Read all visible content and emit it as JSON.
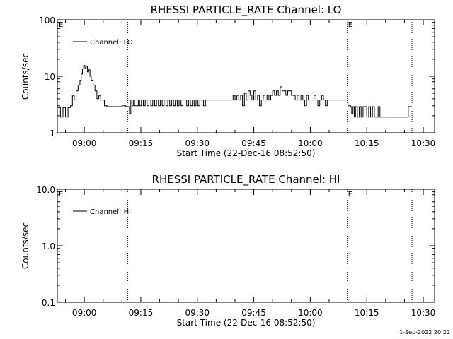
{
  "footer": {
    "timestamp": "1-Sep-2022 20:22"
  },
  "chart_data": [
    {
      "type": "line",
      "title": "RHESSI PARTICLE_RATE Channel: LO",
      "xlabel": "Start Time (22-Dec-16 08:52:50)",
      "ylabel": "Counts/sec",
      "y_scale": "log",
      "ylim": [
        1,
        100
      ],
      "y_ticks": [
        "1",
        "10",
        "100"
      ],
      "x_range": [
        "08:52:50",
        "10:33:00"
      ],
      "x_ticks": [
        "09:00",
        "09:15",
        "09:30",
        "09:45",
        "10:00",
        "10:15",
        "10:30"
      ],
      "grid": false,
      "legend": {
        "position": "top-left",
        "entries": [
          "Channel: LO"
        ]
      },
      "vertical_markers": [
        {
          "time": "09:11:30",
          "label": ""
        },
        {
          "time": "10:09:50",
          "label": "E"
        },
        {
          "time": "10:27:00",
          "label": ""
        }
      ],
      "corner_label": "E",
      "series": [
        {
          "name": "Channel: LO",
          "color": "#000000",
          "points": [
            [
              "08:53:00",
              2.8
            ],
            [
              "08:53:40",
              1.9
            ],
            [
              "08:54:20",
              2.8
            ],
            [
              "08:55:00",
              1.9
            ],
            [
              "08:55:40",
              2.8
            ],
            [
              "08:56:20",
              3.0
            ],
            [
              "08:56:50",
              4.5
            ],
            [
              "08:57:20",
              3.8
            ],
            [
              "08:57:50",
              5.5
            ],
            [
              "08:58:20",
              7.0
            ],
            [
              "08:58:50",
              8.5
            ],
            [
              "08:59:10",
              11.0
            ],
            [
              "08:59:30",
              13.5
            ],
            [
              "08:59:50",
              15.5
            ],
            [
              "09:00:10",
              14.0
            ],
            [
              "09:00:30",
              15.0
            ],
            [
              "09:00:50",
              12.0
            ],
            [
              "09:01:10",
              13.0
            ],
            [
              "09:01:30",
              10.0
            ],
            [
              "09:01:50",
              8.5
            ],
            [
              "09:02:20",
              7.0
            ],
            [
              "09:02:50",
              5.5
            ],
            [
              "09:03:20",
              4.0
            ],
            [
              "09:03:50",
              4.5
            ],
            [
              "09:04:20",
              3.8
            ],
            [
              "09:04:50",
              3.8
            ],
            [
              "09:05:20",
              3.0
            ],
            [
              "09:06:00",
              2.9
            ],
            [
              "09:07:00",
              2.9
            ],
            [
              "09:08:00",
              2.9
            ],
            [
              "09:09:00",
              2.9
            ],
            [
              "09:10:00",
              3.0
            ],
            [
              "09:11:00",
              2.9
            ],
            [
              "09:11:40",
              2.9
            ],
            [
              "09:12:00",
              2.2
            ],
            [
              "09:12:20",
              3.8
            ],
            [
              "09:12:40",
              3.0
            ],
            [
              "09:13:00",
              3.8
            ],
            [
              "09:13:20",
              3.0
            ],
            [
              "09:14:00",
              3.0
            ],
            [
              "09:14:20",
              3.8
            ],
            [
              "09:14:40",
              3.0
            ],
            [
              "09:15:10",
              3.8
            ],
            [
              "09:15:40",
              3.0
            ],
            [
              "09:16:10",
              3.8
            ],
            [
              "09:16:40",
              3.0
            ],
            [
              "09:17:10",
              3.8
            ],
            [
              "09:17:40",
              3.0
            ],
            [
              "09:18:10",
              3.8
            ],
            [
              "09:18:40",
              3.0
            ],
            [
              "09:19:10",
              3.8
            ],
            [
              "09:19:40",
              3.0
            ],
            [
              "09:20:10",
              3.8
            ],
            [
              "09:20:40",
              3.0
            ],
            [
              "09:21:10",
              3.8
            ],
            [
              "09:21:40",
              3.0
            ],
            [
              "09:22:10",
              3.8
            ],
            [
              "09:22:40",
              3.0
            ],
            [
              "09:23:10",
              3.8
            ],
            [
              "09:23:40",
              3.0
            ],
            [
              "09:24:10",
              3.8
            ],
            [
              "09:24:40",
              3.0
            ],
            [
              "09:25:10",
              3.8
            ],
            [
              "09:25:40",
              3.0
            ],
            [
              "09:26:10",
              3.8
            ],
            [
              "09:26:40",
              3.8
            ],
            [
              "09:27:10",
              3.0
            ],
            [
              "09:27:40",
              3.8
            ],
            [
              "09:28:10",
              3.0
            ],
            [
              "09:28:40",
              3.8
            ],
            [
              "09:29:10",
              3.0
            ],
            [
              "09:29:40",
              3.8
            ],
            [
              "09:30:10",
              3.0
            ],
            [
              "09:30:40",
              3.8
            ],
            [
              "09:31:10",
              3.8
            ],
            [
              "09:31:40",
              3.0
            ],
            [
              "09:32:10",
              3.8
            ],
            [
              "09:33:00",
              3.8
            ],
            [
              "09:34:00",
              3.8
            ],
            [
              "09:35:00",
              3.8
            ],
            [
              "09:36:00",
              3.8
            ],
            [
              "09:37:00",
              3.8
            ],
            [
              "09:38:00",
              3.8
            ],
            [
              "09:39:00",
              3.8
            ],
            [
              "09:39:30",
              4.6
            ],
            [
              "09:40:00",
              3.8
            ],
            [
              "09:40:30",
              4.6
            ],
            [
              "09:41:00",
              3.8
            ],
            [
              "09:41:30",
              4.6
            ],
            [
              "09:42:00",
              3.0
            ],
            [
              "09:42:30",
              5.0
            ],
            [
              "09:43:00",
              3.8
            ],
            [
              "09:43:30",
              5.5
            ],
            [
              "09:44:00",
              4.6
            ],
            [
              "09:44:30",
              3.8
            ],
            [
              "09:45:00",
              5.5
            ],
            [
              "09:45:30",
              3.8
            ],
            [
              "09:46:00",
              4.6
            ],
            [
              "09:46:30",
              3.0
            ],
            [
              "09:47:00",
              3.8
            ],
            [
              "09:47:30",
              4.6
            ],
            [
              "09:48:00",
              3.8
            ],
            [
              "09:48:30",
              4.6
            ],
            [
              "09:49:00",
              3.8
            ],
            [
              "09:49:30",
              4.6
            ],
            [
              "09:50:00",
              5.5
            ],
            [
              "09:50:30",
              4.6
            ],
            [
              "09:51:00",
              5.5
            ],
            [
              "09:51:30",
              4.6
            ],
            [
              "09:52:00",
              6.5
            ],
            [
              "09:52:30",
              5.5
            ],
            [
              "09:53:00",
              5.5
            ],
            [
              "09:53:30",
              4.6
            ],
            [
              "09:54:00",
              5.5
            ],
            [
              "09:54:30",
              5.5
            ],
            [
              "09:55:00",
              4.6
            ],
            [
              "09:55:30",
              4.6
            ],
            [
              "09:56:00",
              3.8
            ],
            [
              "09:56:30",
              4.6
            ],
            [
              "09:57:00",
              3.8
            ],
            [
              "09:57:30",
              4.6
            ],
            [
              "09:58:00",
              3.8
            ],
            [
              "09:58:30",
              3.0
            ],
            [
              "09:59:00",
              4.6
            ],
            [
              "09:59:30",
              3.8
            ],
            [
              "10:00:00",
              3.8
            ],
            [
              "10:00:30",
              3.8
            ],
            [
              "10:01:00",
              4.6
            ],
            [
              "10:01:30",
              3.8
            ],
            [
              "10:02:00",
              3.0
            ],
            [
              "10:02:30",
              3.8
            ],
            [
              "10:03:00",
              4.6
            ],
            [
              "10:03:30",
              3.8
            ],
            [
              "10:04:00",
              3.0
            ],
            [
              "10:04:30",
              3.8
            ],
            [
              "10:05:00",
              3.8
            ],
            [
              "10:06:00",
              3.8
            ],
            [
              "10:07:00",
              3.8
            ],
            [
              "10:08:00",
              3.8
            ],
            [
              "10:09:00",
              3.8
            ],
            [
              "10:09:50",
              3.8
            ],
            [
              "10:10:00",
              3.0
            ],
            [
              "10:10:40",
              2.9
            ],
            [
              "10:11:00",
              2.2
            ],
            [
              "10:11:20",
              2.9
            ],
            [
              "10:11:40",
              1.9
            ],
            [
              "10:12:00",
              2.9
            ],
            [
              "10:12:30",
              1.9
            ],
            [
              "10:13:00",
              2.9
            ],
            [
              "10:13:30",
              1.9
            ],
            [
              "10:14:00",
              2.9
            ],
            [
              "10:14:30",
              2.9
            ],
            [
              "10:15:00",
              1.9
            ],
            [
              "10:15:30",
              2.9
            ],
            [
              "10:16:00",
              1.9
            ],
            [
              "10:16:30",
              2.9
            ],
            [
              "10:17:00",
              1.9
            ],
            [
              "10:17:30",
              1.9
            ],
            [
              "10:18:00",
              2.9
            ],
            [
              "10:18:30",
              1.9
            ],
            [
              "10:19:00",
              1.9
            ],
            [
              "10:20:00",
              1.9
            ],
            [
              "10:21:00",
              1.9
            ],
            [
              "10:22:00",
              1.9
            ],
            [
              "10:23:00",
              1.9
            ],
            [
              "10:24:00",
              1.9
            ],
            [
              "10:25:00",
              1.9
            ],
            [
              "10:25:50",
              1.9
            ],
            [
              "10:26:00",
              2.9
            ],
            [
              "10:27:00",
              2.9
            ]
          ]
        }
      ]
    },
    {
      "type": "line",
      "title": "RHESSI PARTICLE_RATE Channel: HI",
      "xlabel": "Start Time (22-Dec-16 08:52:50)",
      "ylabel": "Counts/sec",
      "y_scale": "log",
      "ylim": [
        0.1,
        10
      ],
      "y_ticks": [
        "0.1",
        "1.0",
        "10.0"
      ],
      "x_range": [
        "08:52:50",
        "10:33:00"
      ],
      "x_ticks": [
        "09:00",
        "09:15",
        "09:30",
        "09:45",
        "10:00",
        "10:15",
        "10:30"
      ],
      "grid": false,
      "legend": {
        "position": "top-left",
        "entries": [
          "Channel: HI"
        ]
      },
      "vertical_markers": [
        {
          "time": "09:11:30",
          "label": ""
        },
        {
          "time": "10:09:50",
          "label": "E"
        },
        {
          "time": "10:27:00",
          "label": ""
        }
      ],
      "corner_label": "E",
      "series": [
        {
          "name": "Channel: HI",
          "color": "#000000",
          "points": []
        }
      ]
    }
  ]
}
